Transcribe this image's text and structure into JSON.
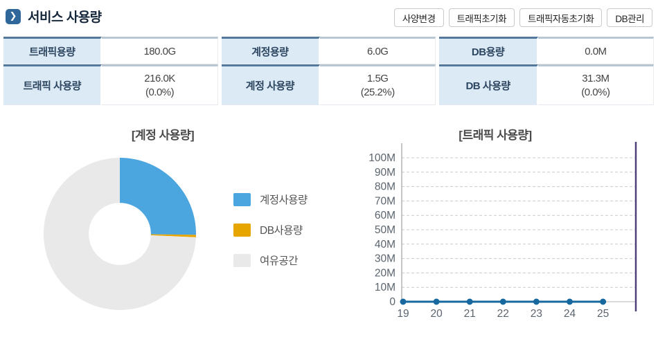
{
  "header": {
    "title": "서비스 사용량",
    "buttons": [
      "사양변경",
      "트래픽초기화",
      "트래픽자동초기화",
      "DB관리"
    ]
  },
  "usage_table": {
    "rows": [
      [
        {
          "label": "트래픽용량",
          "value": "180.0G"
        },
        {
          "label": "계정용량",
          "value": "6.0G"
        },
        {
          "label": "DB용량",
          "value": "0.0M"
        }
      ],
      [
        {
          "label": "트래픽 사용량",
          "value": "216.0K",
          "percent": "(0.0%)"
        },
        {
          "label": "계정 사용량",
          "value": "1.5G",
          "percent": "(25.2%)"
        },
        {
          "label": "DB 사용량",
          "value": "31.3M",
          "percent": "(0.0%)"
        }
      ]
    ]
  },
  "chart_data": [
    {
      "type": "pie",
      "title": "[계정 사용량]",
      "labels": [
        "계정사용량",
        "DB사용량",
        "여유공간"
      ],
      "values": [
        25.2,
        0.5,
        74.3
      ],
      "colors": [
        "#4ba5de",
        "#e7a500",
        "#e9e9e9"
      ],
      "donut_hole_ratio": 0.4,
      "legend_position": "right"
    },
    {
      "type": "line",
      "title": "[트래픽 사용량]",
      "x": [
        19,
        20,
        21,
        22,
        23,
        24,
        25
      ],
      "values": [
        0,
        0,
        0,
        0,
        0,
        0,
        0
      ],
      "ylim": [
        0,
        100000000
      ],
      "ytick_labels": [
        "0",
        "10M",
        "20M",
        "30M",
        "40M",
        "50M",
        "60M",
        "70M",
        "80M",
        "90M",
        "100M"
      ],
      "grid": "dashed-horizontal",
      "line_color": "#16689e",
      "axis_color": "#b3b3b3",
      "grid_color": "#c9c9c9",
      "right_edge_line_color": "#4f4178",
      "tick_text_color": "#5b646e"
    }
  ]
}
